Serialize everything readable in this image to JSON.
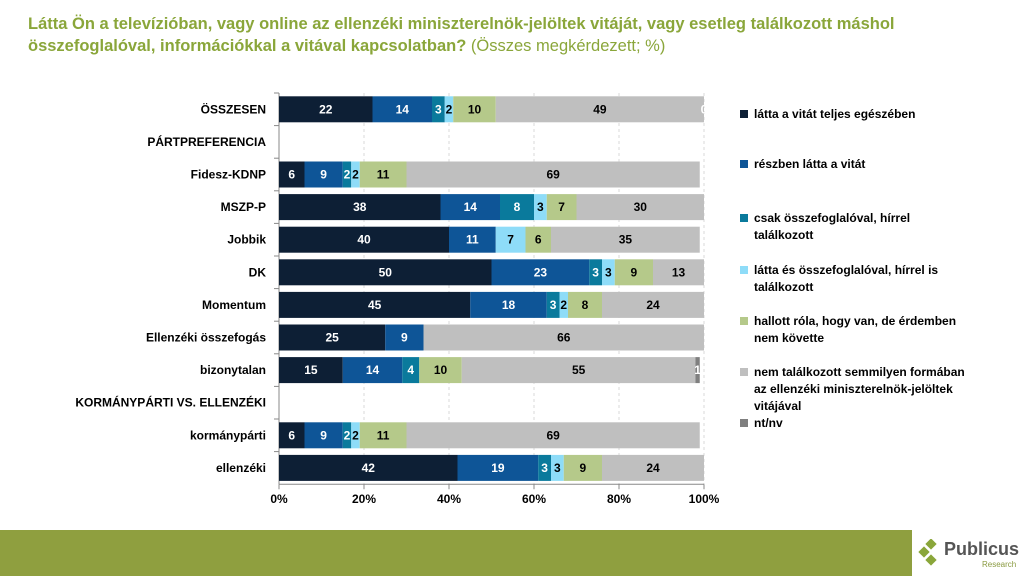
{
  "title": {
    "main": "Látta Ön a televízióban, vagy online az ellenzéki miniszterelnök-jelöltek vitáját, vagy esetleg találkozott máshol összefoglalóval, információkkal a vitával kapcsolatban?",
    "sub": " (Összes megkérdezett; %)"
  },
  "chart_data": {
    "type": "bar",
    "orientation": "horizontal-stacked-100",
    "xlim": [
      0,
      100
    ],
    "x_ticks": [
      "0%",
      "20%",
      "40%",
      "60%",
      "80%",
      "100%"
    ],
    "grid": true,
    "legend_position": "right",
    "categories": [
      "ÖSSZESEN",
      "PÁRTPREFERENCIA",
      "Fidesz-KDNP",
      "MSZP-P",
      "Jobbik",
      "DK",
      "Momentum",
      "Ellenzéki összefogás",
      "bizonytalan",
      "KORMÁNYPÁRTI VS. ELLENZÉKI",
      "kormánypárti",
      "ellenzéki"
    ],
    "series": [
      {
        "name": "látta a vitát teljes egészében",
        "color": "#0d1f35",
        "values": [
          22,
          null,
          6,
          38,
          40,
          50,
          45,
          25,
          15,
          null,
          6,
          42
        ]
      },
      {
        "name": "részben látta a vitát",
        "color": "#0e5597",
        "values": [
          14,
          null,
          9,
          14,
          11,
          23,
          18,
          9,
          14,
          null,
          9,
          19
        ]
      },
      {
        "name": "csak összefoglalóval, hírrel találkozott",
        "color": "#0a7a9c",
        "values": [
          3,
          null,
          2,
          8,
          0,
          3,
          3,
          0,
          4,
          null,
          2,
          3
        ]
      },
      {
        "name": "látta és összefoglalóval, hírrel is találkozott",
        "color": "#8edcf8",
        "values": [
          2,
          null,
          2,
          3,
          7,
          3,
          2,
          0,
          0,
          null,
          2,
          3
        ]
      },
      {
        "name": "hallott róla, hogy van, de érdemben nem követte",
        "color": "#b5c98a",
        "values": [
          10,
          null,
          11,
          7,
          6,
          9,
          8,
          0,
          10,
          null,
          11,
          9
        ]
      },
      {
        "name": "nem találkozott semmilyen formában az ellenzéki miniszterelnök-jelöltek vitájával",
        "color": "#bfbfbf",
        "values": [
          49,
          null,
          69,
          30,
          35,
          13,
          24,
          66,
          55,
          null,
          69,
          24
        ]
      },
      {
        "name": "nt/nv",
        "color": "#7f7f7f",
        "values": [
          0,
          null,
          0,
          0,
          0,
          0,
          0,
          0,
          1,
          null,
          0,
          0
        ]
      }
    ]
  },
  "logo": {
    "name": "Publicus",
    "sub": "Research"
  }
}
